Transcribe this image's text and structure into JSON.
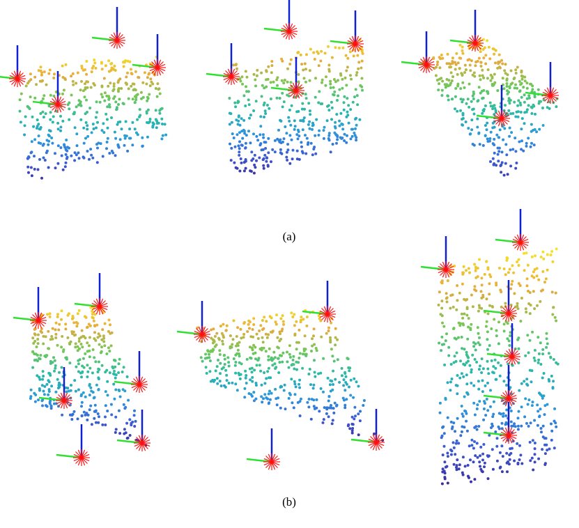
{
  "figure": {
    "subfigure_labels": [
      "(a)",
      "(b)"
    ]
  }
}
